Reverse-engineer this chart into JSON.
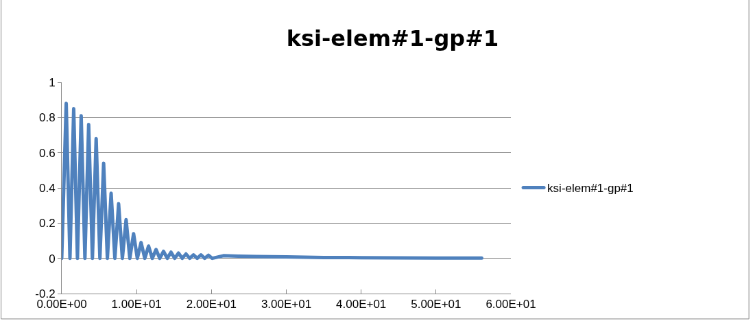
{
  "chart_data": {
    "type": "line",
    "title": "ksi-elem#1-gp#1",
    "x": [
      0,
      0.6,
      1.1,
      1.6,
      2.1,
      2.6,
      3.1,
      3.6,
      4.1,
      4.6,
      5.1,
      5.6,
      6.1,
      6.6,
      7.1,
      7.6,
      8.1,
      8.6,
      9.1,
      9.6,
      10.1,
      10.6,
      11.1,
      11.6,
      12.1,
      12.6,
      13.1,
      13.6,
      14.1,
      14.6,
      15.1,
      15.6,
      16.1,
      16.6,
      17.1,
      17.6,
      18.1,
      18.6,
      19.1,
      19.6,
      20.1,
      21.6,
      23.6,
      26,
      30,
      35,
      40,
      45,
      50,
      56.1
    ],
    "series": [
      {
        "name": "ksi-elem#1-gp#1",
        "color": "#4f81bd",
        "values": [
          0,
          0.88,
          0,
          0.85,
          0,
          0.81,
          0,
          0.76,
          0,
          0.68,
          0,
          0.54,
          0,
          0.37,
          0,
          0.31,
          0,
          0.22,
          0,
          0.14,
          0,
          0.09,
          0,
          0.07,
          0,
          0.05,
          0,
          0.04,
          0,
          0.035,
          0,
          0.03,
          0,
          0.025,
          0,
          0.02,
          0,
          0.02,
          0,
          0.018,
          0,
          0.015,
          0.012,
          0.01,
          0.008,
          0.005,
          0.004,
          0.003,
          0.002,
          0.002
        ]
      }
    ],
    "xlim": [
      0,
      60
    ],
    "xticks": [
      {
        "value": 0,
        "label": "0.00E+00"
      },
      {
        "value": 10,
        "label": "1.00E+01"
      },
      {
        "value": 20,
        "label": "2.00E+01"
      },
      {
        "value": 30,
        "label": "3.00E+01"
      },
      {
        "value": 40,
        "label": "4.00E+01"
      },
      {
        "value": 50,
        "label": "5.00E+01"
      },
      {
        "value": 60,
        "label": "6.00E+01"
      }
    ],
    "ylim": [
      -0.2,
      1
    ],
    "yticks": [
      -0.2,
      0,
      0.2,
      0.4,
      0.6,
      0.8,
      1
    ],
    "grid": "y",
    "legend": "right",
    "marker": "none",
    "line_style": "solid"
  }
}
